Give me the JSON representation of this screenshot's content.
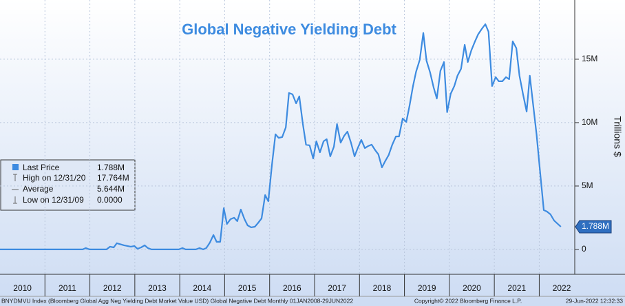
{
  "chart_data": {
    "type": "line",
    "title": "Global Negative Yielding Debt",
    "y_axis_label": "Trillions $",
    "x": [
      2010,
      2011.84,
      2011.91,
      2011.99,
      2012.37,
      2012.45,
      2012.53,
      2012.6,
      2012.76,
      2012.91,
      2012.99,
      2013.06,
      2013.14,
      2013.22,
      2013.29,
      2013.37,
      2013.98,
      2014.06,
      2014.13,
      2014.36,
      2014.44,
      2014.52,
      2014.59,
      2014.67,
      2014.75,
      2014.82,
      2014.9,
      2014.98,
      2015.05,
      2015.13,
      2015.21,
      2015.28,
      2015.36,
      2015.44,
      2015.51,
      2015.59,
      2015.67,
      2015.74,
      2015.82,
      2015.9,
      2015.97,
      2016.05,
      2016.13,
      2016.2,
      2016.28,
      2016.36,
      2016.43,
      2016.51,
      2016.59,
      2016.66,
      2016.74,
      2016.81,
      2016.89,
      2016.97,
      2017.04,
      2017.12,
      2017.2,
      2017.27,
      2017.35,
      2017.43,
      2017.5,
      2017.58,
      2017.66,
      2017.73,
      2017.81,
      2017.89,
      2017.96,
      2018.04,
      2018.12,
      2018.19,
      2018.27,
      2018.35,
      2018.42,
      2018.5,
      2018.58,
      2018.65,
      2018.73,
      2018.81,
      2018.88,
      2018.96,
      2019.04,
      2019.11,
      2019.19,
      2019.26,
      2019.34,
      2019.42,
      2019.49,
      2019.57,
      2019.65,
      2019.72,
      2019.8,
      2019.88,
      2019.95,
      2020.03,
      2020.11,
      2020.18,
      2020.26,
      2020.34,
      2020.41,
      2020.49,
      2020.57,
      2020.64,
      2020.72,
      2020.8,
      2020.87,
      2020.95,
      2021.03,
      2021.1,
      2021.18,
      2021.26,
      2021.33,
      2021.41,
      2021.49,
      2021.56,
      2021.64,
      2021.72,
      2021.79,
      2021.87,
      2021.94,
      2022.02,
      2022.1,
      2022.17,
      2022.25,
      2022.33,
      2022.48
    ],
    "series": [
      {
        "name": "Last Price",
        "color": "#3d8be0",
        "values": [
          0,
          0,
          0.11,
          0,
          0,
          0.22,
          0.16,
          0.49,
          0.33,
          0.22,
          0.27,
          0.05,
          0.16,
          0.33,
          0.11,
          0,
          0,
          0.11,
          0,
          0,
          0.11,
          0,
          0.11,
          0.54,
          1.14,
          0.6,
          0.6,
          3.26,
          2.01,
          2.39,
          2.5,
          2.23,
          3.15,
          2.39,
          1.9,
          1.74,
          1.79,
          2.07,
          2.45,
          4.29,
          3.8,
          6.63,
          9.08,
          8.8,
          8.86,
          9.62,
          12.34,
          12.23,
          11.52,
          12.07,
          9.89,
          8.26,
          8.21,
          7.17,
          8.53,
          7.66,
          8.53,
          8.7,
          7.34,
          8.1,
          9.89,
          8.42,
          8.97,
          9.29,
          8.42,
          7.34,
          7.99,
          8.64,
          7.99,
          8.15,
          8.26,
          7.83,
          7.5,
          6.47,
          7.01,
          7.45,
          8.26,
          8.91,
          8.91,
          10.33,
          10.05,
          11.25,
          12.88,
          14.02,
          14.95,
          17.07,
          14.89,
          13.97,
          12.77,
          11.9,
          14.08,
          14.78,
          10.82,
          12.28,
          12.88,
          13.7,
          14.24,
          16.14,
          14.78,
          15.71,
          16.41,
          16.96,
          17.39,
          17.76,
          17.17,
          12.88,
          13.59,
          13.26,
          13.26,
          13.59,
          13.42,
          16.41,
          15.87,
          13.7,
          12.23,
          10.87,
          13.7,
          11.25,
          9.08,
          6.09,
          3.1,
          2.99,
          2.77,
          2.28,
          1.788
        ]
      }
    ],
    "last_label": "1.788M",
    "xlim": [
      2010,
      2022.79
    ],
    "xticks": [
      2010,
      2011,
      2012,
      2013,
      2014,
      2015,
      2016,
      2017,
      2018,
      2019,
      2020,
      2021,
      2022
    ],
    "ylim": [
      -1.96,
      19.67
    ],
    "yticks": [
      0,
      {
        "value": 5,
        "label": "5M"
      },
      {
        "value": 10,
        "label": "10M"
      },
      {
        "value": 15,
        "label": "15M"
      }
    ],
    "grid": true,
    "legend": [
      {
        "label": "Last Price",
        "value": "1.788M"
      },
      {
        "label": "High on 12/31/20",
        "value": "17.764M"
      },
      {
        "label": "Average",
        "value": "5.644M"
      },
      {
        "label": "Low on 12/31/09",
        "value": "0.0000"
      }
    ],
    "footer": {
      "left": "BNYDMVU Index (Bloomberg Global Agg Neg Yielding Debt Market Value USD) Global Negative Debt  Monthly 01JAN2008-29JUN2022",
      "center": "Copyright© 2022 Bloomberg Finance L.P.",
      "right": "29-Jun-2022 12:32:33"
    }
  }
}
